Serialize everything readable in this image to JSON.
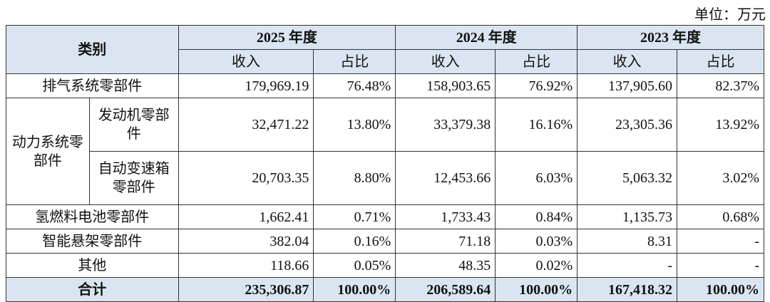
{
  "unit": "单位：万元",
  "header": {
    "category": "类别",
    "years": [
      "2025 年度",
      "2024 年度",
      "2023 年度"
    ],
    "columns": [
      "收入",
      "占比"
    ]
  },
  "rows": [
    {
      "label": "排气系统零部件",
      "cells": [
        "179,969.19",
        "76.48%",
        "158,903.65",
        "76.92%",
        "137,905.60",
        "82.37%"
      ]
    },
    {
      "group": "动力系统零部件",
      "label": "发动机零部件",
      "cells": [
        "32,471.22",
        "13.80%",
        "33,379.38",
        "16.16%",
        "23,305.36",
        "13.92%"
      ]
    },
    {
      "label": "自动变速箱零部件",
      "cells": [
        "20,703.35",
        "8.80%",
        "12,453.66",
        "6.03%",
        "5,063.32",
        "3.02%"
      ]
    },
    {
      "label": "氢燃料电池零部件",
      "cells": [
        "1,662.41",
        "0.71%",
        "1,733.43",
        "0.84%",
        "1,135.73",
        "0.68%"
      ]
    },
    {
      "label": "智能悬架零部件",
      "cells": [
        "382.04",
        "0.16%",
        "71.18",
        "0.03%",
        "8.31",
        "-"
      ]
    },
    {
      "label": "其他",
      "cells": [
        "118.66",
        "0.05%",
        "48.35",
        "0.02%",
        "-",
        "-"
      ]
    }
  ],
  "total": {
    "label": "合计",
    "cells": [
      "235,306.87",
      "100.00%",
      "206,589.64",
      "100.00%",
      "167,418.32",
      "100.00%"
    ]
  }
}
